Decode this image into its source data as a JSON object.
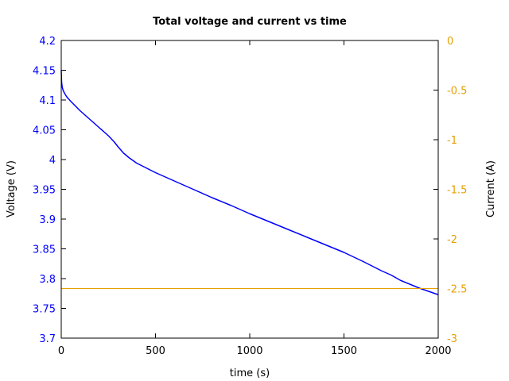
{
  "chart_data": {
    "type": "line",
    "title": "Total voltage and current vs time",
    "xlabel": "time (s)",
    "ylabel": "Voltage (V)",
    "y2label": "Current (A)",
    "xlim": [
      0,
      2000
    ],
    "ylim": [
      3.7,
      4.2
    ],
    "y2lim": [
      -3,
      0
    ],
    "x_ticks": [
      "0",
      "500",
      "1000",
      "1500",
      "2000"
    ],
    "y_ticks": [
      "3.7",
      "3.75",
      "3.8",
      "3.85",
      "3.9",
      "3.95",
      "4",
      "4.05",
      "4.1",
      "4.15",
      "4.2"
    ],
    "y2_ticks": [
      "-3",
      "-2.5",
      "-2",
      "-1.5",
      "-1",
      "-0.5",
      "0"
    ],
    "grid": false,
    "series": [
      {
        "axis": "left",
        "color": "#0000ff",
        "x": [
          0,
          2,
          5,
          10,
          20,
          30,
          50,
          100,
          150,
          200,
          250,
          280,
          300,
          330,
          360,
          400,
          450,
          500,
          600,
          700,
          800,
          900,
          1000,
          1100,
          1200,
          1300,
          1400,
          1500,
          1600,
          1700,
          1750,
          1800,
          1900,
          2000
        ],
        "y": [
          4.15,
          4.13,
          4.122,
          4.116,
          4.11,
          4.105,
          4.098,
          4.082,
          4.068,
          4.054,
          4.04,
          4.03,
          4.022,
          4.011,
          4.003,
          3.994,
          3.986,
          3.978,
          3.964,
          3.95,
          3.936,
          3.923,
          3.909,
          3.896,
          3.883,
          3.87,
          3.857,
          3.844,
          3.829,
          3.813,
          3.806,
          3.797,
          3.784,
          3.773
        ]
      },
      {
        "axis": "right",
        "color": "#e6a000",
        "x": [
          0,
          2000
        ],
        "y": [
          -2.5,
          -2.5
        ]
      }
    ]
  }
}
